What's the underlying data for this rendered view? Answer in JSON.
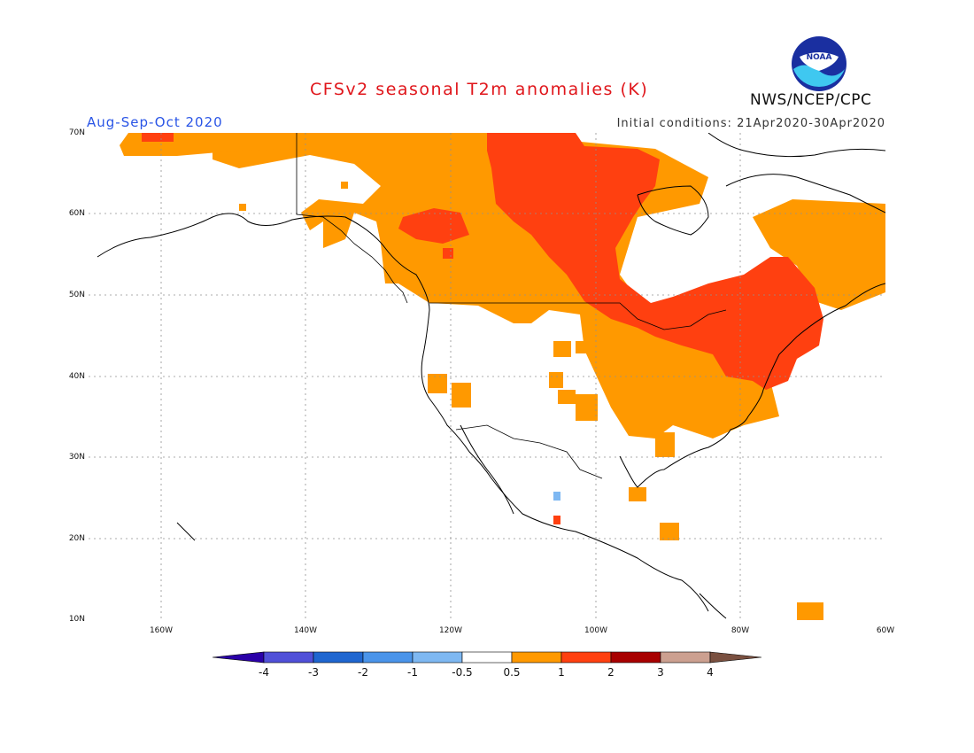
{
  "header": {
    "title": "CFSv2 seasonal T2m anomalies (K)",
    "period": "Aug-Sep-Oct 2020",
    "initial_conditions": "Initial conditions: 21Apr2020-30Apr2020",
    "agency": "NWS/NCEP/CPC",
    "logo_text": "NOAA"
  },
  "axes": {
    "lat_labels": [
      "70N",
      "60N",
      "50N",
      "40N",
      "30N",
      "20N",
      "10N"
    ],
    "lon_labels": [
      "160W",
      "140W",
      "120W",
      "100W",
      "80W",
      "60W"
    ],
    "lat_range": [
      10,
      70
    ],
    "lon_range": [
      -170,
      -60
    ]
  },
  "legend": {
    "tick_labels": [
      "-4",
      "-3",
      "-2",
      "-1",
      "-0.5",
      "0.5",
      "1",
      "2",
      "3",
      "4"
    ],
    "bins": [
      {
        "color": "#2a00a8"
      },
      {
        "color": "#5050d8"
      },
      {
        "color": "#1f66d0"
      },
      {
        "color": "#4a94ea"
      },
      {
        "color": "#7eb8f2"
      },
      {
        "color": "#ffffff"
      },
      {
        "color": "#ff9900"
      },
      {
        "color": "#ff4010"
      },
      {
        "color": "#a80000"
      },
      {
        "color": "#cca090"
      },
      {
        "color": "#7a5040"
      }
    ]
  },
  "anomaly_colors": {
    "low": "#ff9900",
    "mid": "#ff4010",
    "cool": "#7eb8f2"
  }
}
